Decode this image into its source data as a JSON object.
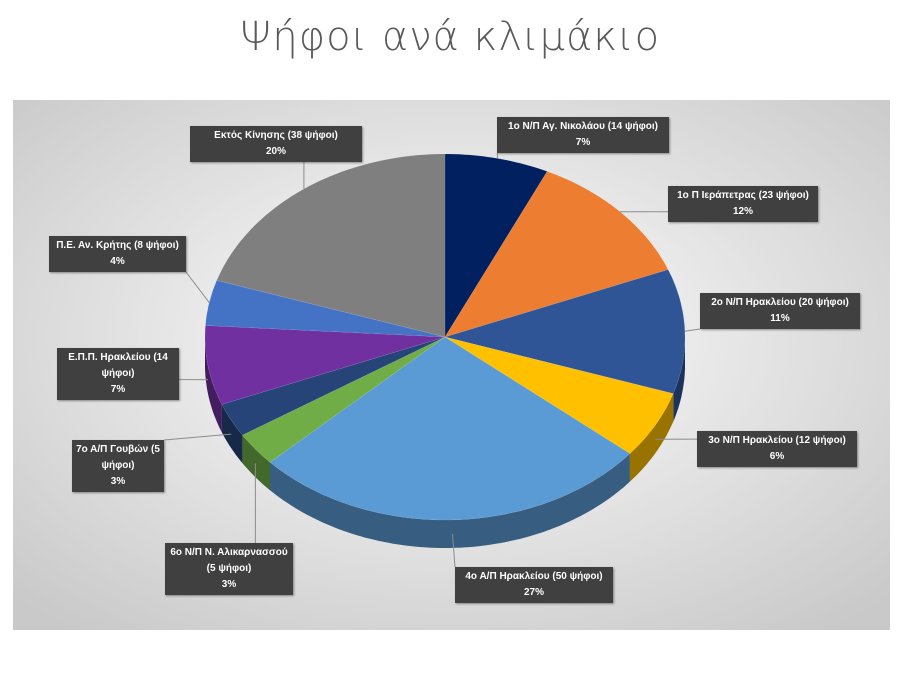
{
  "chart_data": {
    "type": "pie",
    "title": "Ψήφοι ανά κλιμάκιο",
    "categories": [
      "1ο Ν/Π Αγ. Νικολάου (14 ψήφοι)",
      "1ο Π Ιεράπετρας (23 ψήφοι)",
      "2ο Ν/Π Ηρακλείου (20 ψήφοι)",
      "3ο Ν/Π Ηρακλείου (12 ψήφοι)",
      "4ο Α/Π Ηρακλείου (50 ψήφοι)",
      "6ο Ν/Π Ν. Αλικαρνασσού (5 ψήφοι)",
      "7ο Α/Π Γουβών (5 ψήφοι)",
      "Ε.Π.Π. Ηρακλείου (14 ψήφοι)",
      "Π.Ε. Αν. Κρήτης (8 ψήφοι)",
      "Εκτός Κίνησης (38 ψήφοι)"
    ],
    "values": [
      7,
      12,
      11,
      6,
      27,
      3,
      3,
      7,
      4,
      20
    ],
    "value_labels": [
      "7%",
      "12%",
      "11%",
      "6%",
      "27%",
      "3%",
      "3%",
      "7%",
      "4%",
      "20%"
    ],
    "colors": [
      "#002060",
      "#ED7D31",
      "#2F5597",
      "#FFC000",
      "#5B9BD5",
      "#70AD47",
      "#264478",
      "#7030A0",
      "#4472C4",
      "#7F7F7F"
    ]
  }
}
